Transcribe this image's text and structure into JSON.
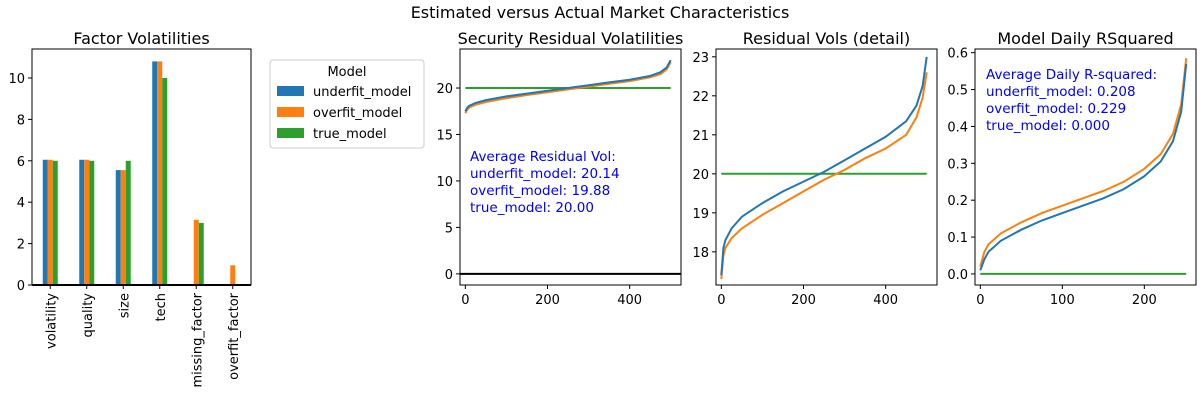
{
  "figure_title": "Estimated versus Actual Market Characteristics",
  "colors": {
    "underfit": "#1f77b4",
    "overfit": "#ff7f0e",
    "true": "#2ca02c",
    "annotation": "#0000ff",
    "axis": "#000000",
    "zero_line": "#000000"
  },
  "chart_data": [
    {
      "type": "bar",
      "title": "Factor Volatilities",
      "categories": [
        "volatility",
        "quality",
        "size",
        "tech",
        "missing_factor",
        "overfit_factor"
      ],
      "series": [
        {
          "name": "underfit_model",
          "values": [
            6.05,
            6.05,
            5.55,
            10.8,
            0.0,
            0.0
          ]
        },
        {
          "name": "overfit_model",
          "values": [
            6.05,
            6.05,
            5.55,
            10.8,
            3.15,
            0.95
          ]
        },
        {
          "name": "true_model",
          "values": [
            6.0,
            6.0,
            6.0,
            10.0,
            3.0,
            0.0
          ]
        }
      ],
      "ylim": [
        0,
        11.4
      ],
      "yticks": [
        0,
        2,
        4,
        6,
        8,
        10
      ],
      "legend": {
        "title": "Model",
        "placement": "outside-right"
      }
    },
    {
      "type": "line",
      "title": "Security Residual Volatilities",
      "x_range": [
        0,
        500
      ],
      "xlim": [
        -13,
        525
      ],
      "ylim": [
        -1.2,
        24.2
      ],
      "xticks": [
        0,
        200,
        400
      ],
      "yticks": [
        0,
        5,
        10,
        15,
        20
      ],
      "series": [
        {
          "name": "underfit_model",
          "points": [
            [
              0,
              17.5
            ],
            [
              5,
              17.9
            ],
            [
              10,
              18.1
            ],
            [
              25,
              18.4
            ],
            [
              50,
              18.7
            ],
            [
              100,
              19.1
            ],
            [
              150,
              19.4
            ],
            [
              200,
              19.7
            ],
            [
              250,
              20.0
            ],
            [
              300,
              20.3
            ],
            [
              350,
              20.6
            ],
            [
              400,
              20.9
            ],
            [
              450,
              21.3
            ],
            [
              475,
              21.7
            ],
            [
              490,
              22.2
            ],
            [
              500,
              23.0
            ]
          ]
        },
        {
          "name": "overfit_model",
          "points": [
            [
              0,
              17.3
            ],
            [
              5,
              17.7
            ],
            [
              10,
              17.9
            ],
            [
              25,
              18.2
            ],
            [
              50,
              18.5
            ],
            [
              100,
              18.9
            ],
            [
              150,
              19.25
            ],
            [
              200,
              19.55
            ],
            [
              250,
              19.85
            ],
            [
              300,
              20.15
            ],
            [
              350,
              20.45
            ],
            [
              400,
              20.75
            ],
            [
              450,
              21.15
            ],
            [
              475,
              21.5
            ],
            [
              490,
              22.0
            ],
            [
              500,
              22.8
            ]
          ]
        },
        {
          "name": "true_model",
          "points": [
            [
              0,
              20
            ],
            [
              500,
              20
            ]
          ]
        }
      ],
      "hline": 0,
      "annotation": [
        "Average Residual Vol:",
        "underfit_model: 20.14",
        "overfit_model: 19.88",
        "true_model: 20.00"
      ]
    },
    {
      "type": "line",
      "title": "Residual Vols (detail)",
      "x_range": [
        0,
        500
      ],
      "xlim": [
        -13,
        525
      ],
      "ylim": [
        17.15,
        23.2
      ],
      "xticks": [
        0,
        200,
        400
      ],
      "yticks": [
        18,
        19,
        20,
        21,
        22,
        23
      ],
      "series": [
        {
          "name": "underfit_model",
          "points": [
            [
              0,
              17.4
            ],
            [
              5,
              18.1
            ],
            [
              10,
              18.3
            ],
            [
              25,
              18.6
            ],
            [
              50,
              18.9
            ],
            [
              100,
              19.25
            ],
            [
              150,
              19.55
            ],
            [
              200,
              19.8
            ],
            [
              250,
              20.05
            ],
            [
              300,
              20.35
            ],
            [
              350,
              20.65
            ],
            [
              400,
              20.95
            ],
            [
              450,
              21.35
            ],
            [
              475,
              21.75
            ],
            [
              490,
              22.25
            ],
            [
              500,
              23.0
            ]
          ]
        },
        {
          "name": "overfit_model",
          "points": [
            [
              0,
              17.3
            ],
            [
              5,
              17.9
            ],
            [
              10,
              18.1
            ],
            [
              25,
              18.35
            ],
            [
              50,
              18.6
            ],
            [
              100,
              18.95
            ],
            [
              150,
              19.25
            ],
            [
              200,
              19.55
            ],
            [
              250,
              19.85
            ],
            [
              300,
              20.1
            ],
            [
              350,
              20.4
            ],
            [
              400,
              20.65
            ],
            [
              450,
              21.0
            ],
            [
              475,
              21.45
            ],
            [
              490,
              21.95
            ],
            [
              500,
              22.6
            ]
          ]
        },
        {
          "name": "true_model",
          "points": [
            [
              0,
              20
            ],
            [
              500,
              20
            ]
          ]
        }
      ]
    },
    {
      "type": "line",
      "title": "Model Daily RSquared",
      "x_range": [
        0,
        251
      ],
      "xlim": [
        -6.5,
        263
      ],
      "ylim": [
        -0.03,
        0.61
      ],
      "xticks": [
        0,
        100,
        200
      ],
      "yticks": [
        0.0,
        0.1,
        0.2,
        0.3,
        0.4,
        0.5,
        0.6
      ],
      "series": [
        {
          "name": "underfit_model",
          "points": [
            [
              0,
              0.01
            ],
            [
              5,
              0.04
            ],
            [
              10,
              0.06
            ],
            [
              25,
              0.09
            ],
            [
              50,
              0.12
            ],
            [
              75,
              0.145
            ],
            [
              100,
              0.165
            ],
            [
              125,
              0.185
            ],
            [
              150,
              0.205
            ],
            [
              175,
              0.23
            ],
            [
              200,
              0.265
            ],
            [
              220,
              0.305
            ],
            [
              235,
              0.36
            ],
            [
              245,
              0.44
            ],
            [
              251,
              0.57
            ]
          ]
        },
        {
          "name": "overfit_model",
          "points": [
            [
              0,
              0.02
            ],
            [
              5,
              0.06
            ],
            [
              10,
              0.08
            ],
            [
              25,
              0.11
            ],
            [
              50,
              0.14
            ],
            [
              75,
              0.165
            ],
            [
              100,
              0.185
            ],
            [
              125,
              0.205
            ],
            [
              150,
              0.225
            ],
            [
              175,
              0.25
            ],
            [
              200,
              0.285
            ],
            [
              220,
              0.325
            ],
            [
              235,
              0.38
            ],
            [
              245,
              0.46
            ],
            [
              251,
              0.585
            ]
          ]
        },
        {
          "name": "true_model",
          "points": [
            [
              0,
              0
            ],
            [
              251,
              0
            ]
          ]
        }
      ],
      "annotation": [
        "Average Daily R-squared:",
        "underfit_model: 0.208",
        "overfit_model: 0.229",
        "true_model: 0.000"
      ]
    }
  ]
}
